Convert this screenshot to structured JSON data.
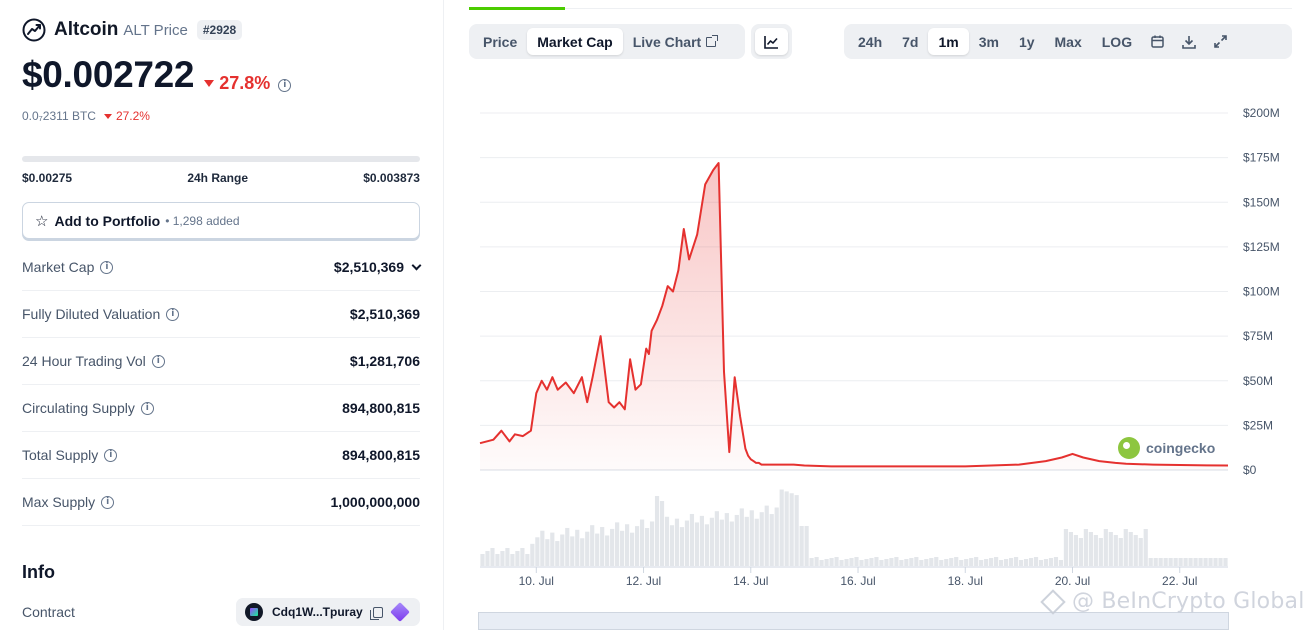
{
  "coin": {
    "name": "Altcoin",
    "ticker": "ALT Price",
    "rank": "#2928",
    "price": "$0.002722",
    "change_24h": "27.8%",
    "btc_price": "0.0₇2311 BTC",
    "btc_change": "27.2%"
  },
  "range": {
    "low": "$0.00275",
    "label": "24h Range",
    "high": "$0.003873"
  },
  "portfolio": {
    "label": "Add to Portfolio",
    "count": "• 1,298 added"
  },
  "stats": [
    {
      "label": "Market Cap",
      "value": "$2,510,369"
    },
    {
      "label": "Fully Diluted Valuation",
      "value": "$2,510,369"
    },
    {
      "label": "24 Hour Trading Vol",
      "value": "$1,281,706"
    },
    {
      "label": "Circulating Supply",
      "value": "894,800,815"
    },
    {
      "label": "Total Supply",
      "value": "894,800,815"
    },
    {
      "label": "Max Supply",
      "value": "1,000,000,000"
    }
  ],
  "info": {
    "heading": "Info",
    "contract_label": "Contract",
    "contract_value": "Cdq1W...Tpuray"
  },
  "chart_tabs": {
    "price": "Price",
    "market_cap": "Market Cap",
    "live_chart": "Live Chart"
  },
  "ranges": {
    "r24h": "24h",
    "r7d": "7d",
    "r1m": "1m",
    "r3m": "3m",
    "r1y": "1y",
    "max": "Max",
    "log": "LOG"
  },
  "branding": {
    "coingecko": "coingecko",
    "watermark": "@ BeInCrypto Global"
  },
  "colors": {
    "line": "#e5312f",
    "accent_green": "#4bcc00",
    "volume": "#e3e6ea"
  },
  "icons": {
    "coin": "altcoin-logo-icon",
    "chart_type": "line-chart-icon",
    "calendar": "calendar-icon",
    "download": "download-icon",
    "fullscreen": "expand-icon"
  },
  "chart_data": {
    "type": "area",
    "title": "",
    "ylabel": "",
    "xlabel": "",
    "y_ticks": [
      "$0",
      "$25M",
      "$50M",
      "$75M",
      "$100M",
      "$125M",
      "$150M",
      "$175M",
      "$200M"
    ],
    "y_tick_values": [
      0,
      25,
      50,
      75,
      100,
      125,
      150,
      175,
      200
    ],
    "x_ticks": [
      "10. Jul",
      "12. Jul",
      "14. Jul",
      "16. Jul",
      "18. Jul",
      "20. Jul",
      "22. Jul"
    ],
    "x_tick_values": [
      10,
      12,
      14,
      16,
      18,
      20,
      22
    ],
    "xlim": [
      8.95,
      22.9
    ],
    "ylim": [
      0,
      200
    ],
    "unit": "USD millions",
    "grid": true,
    "x": [
      8.95,
      9.2,
      9.35,
      9.5,
      9.6,
      9.75,
      9.9,
      10.0,
      10.1,
      10.2,
      10.3,
      10.4,
      10.55,
      10.7,
      10.85,
      10.95,
      11.05,
      11.2,
      11.35,
      11.45,
      11.55,
      11.65,
      11.75,
      11.85,
      11.95,
      12.05,
      12.1,
      12.15,
      12.25,
      12.35,
      12.45,
      12.55,
      12.65,
      12.75,
      12.85,
      13.0,
      13.15,
      13.3,
      13.4,
      13.5,
      13.6,
      13.7,
      13.8,
      13.9,
      13.95,
      14.0,
      14.05,
      14.1,
      14.15,
      14.2,
      14.3,
      14.45,
      14.6,
      14.8,
      15.0,
      15.5,
      16.0,
      17.0,
      18.0,
      19.0,
      19.5,
      19.8,
      20.0,
      20.2,
      20.5,
      20.8,
      21.0,
      21.5,
      22.0,
      22.5,
      22.9
    ],
    "values": [
      15,
      17,
      22,
      16,
      20,
      19,
      22,
      43,
      50,
      45,
      52,
      45,
      49,
      43,
      52,
      38,
      52,
      75,
      38,
      35,
      38,
      34,
      62,
      45,
      48,
      68,
      65,
      78,
      84,
      92,
      103,
      100,
      112,
      135,
      118,
      132,
      160,
      168,
      172,
      55,
      10,
      52,
      30,
      12,
      8,
      6,
      5,
      4,
      4,
      3,
      3,
      3,
      3,
      3,
      2.5,
      2,
      2,
      2,
      2,
      3,
      5,
      7,
      9,
      7,
      5,
      4,
      3.5,
      3,
      2.8,
      2.6,
      2.5
    ],
    "volume_note": "volume histogram shown beneath price area (unlabeled)"
  }
}
